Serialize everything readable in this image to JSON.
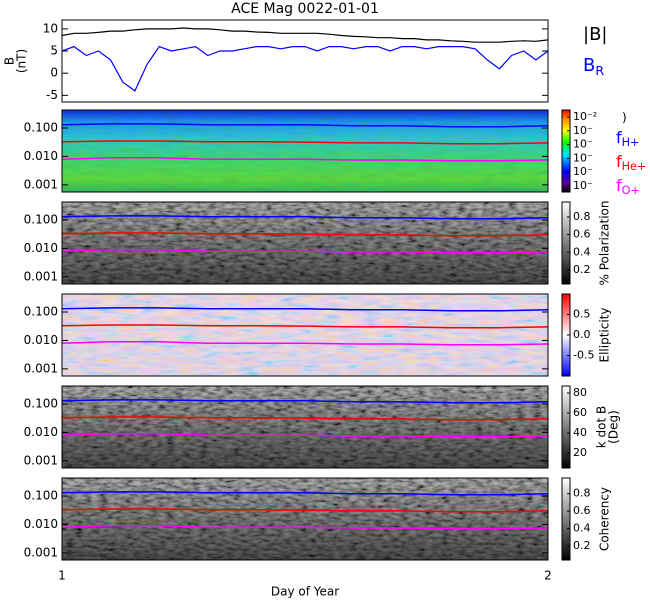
{
  "title": "ACE Mag 0022-01-01",
  "gyrofrequencies": {
    "x": [
      1.0,
      1.1,
      1.2,
      1.3,
      1.4,
      1.5,
      1.6,
      1.7,
      1.8,
      1.9,
      2.0
    ],
    "series": [
      {
        "name": "f",
        "subscript": "H+",
        "color": "#0000ff",
        "values": [
          0.13,
          0.14,
          0.14,
          0.13,
          0.13,
          0.13,
          0.12,
          0.12,
          0.11,
          0.11,
          0.12
        ]
      },
      {
        "name": "f",
        "subscript": "He+",
        "color": "#ff0000",
        "values": [
          0.033,
          0.035,
          0.035,
          0.033,
          0.033,
          0.032,
          0.03,
          0.03,
          0.028,
          0.028,
          0.03
        ]
      },
      {
        "name": "f",
        "subscript": "O+",
        "color": "#ff00ff",
        "values": [
          0.008,
          0.009,
          0.009,
          0.008,
          0.008,
          0.008,
          0.0075,
          0.0075,
          0.007,
          0.007,
          0.0075
        ]
      }
    ]
  },
  "chart_data": [
    {
      "type": "line",
      "ylabel": [
        "B",
        "(nT)"
      ],
      "xlim": [
        1,
        2
      ],
      "ylim": [
        -6.5,
        12
      ],
      "yticks": [
        -5,
        0,
        5,
        10
      ],
      "x": [
        1.0,
        1.025,
        1.05,
        1.075,
        1.1,
        1.125,
        1.15,
        1.175,
        1.2,
        1.225,
        1.25,
        1.275,
        1.3,
        1.325,
        1.35,
        1.375,
        1.4,
        1.425,
        1.45,
        1.475,
        1.5,
        1.525,
        1.55,
        1.575,
        1.6,
        1.625,
        1.65,
        1.675,
        1.7,
        1.725,
        1.75,
        1.775,
        1.8,
        1.825,
        1.85,
        1.875,
        1.9,
        1.925,
        1.95,
        1.975,
        2.0
      ],
      "series": [
        {
          "name": "|B|",
          "subscript": "",
          "color": "#000000",
          "values": [
            8.5,
            9,
            9,
            9.2,
            9.5,
            9.5,
            9.8,
            10,
            10,
            10,
            10.2,
            10,
            10,
            9.8,
            9.5,
            9.5,
            9.3,
            9.2,
            9,
            9,
            9,
            9,
            8.8,
            8.5,
            8.3,
            8.2,
            8,
            8,
            7.8,
            7.8,
            7.5,
            7.5,
            7.3,
            7.2,
            7,
            7,
            7,
            7.2,
            7.3,
            7.2,
            7.5
          ]
        },
        {
          "name": "B",
          "subscript": "R",
          "color": "#0000ff",
          "values": [
            5,
            6,
            4,
            5,
            3,
            -2,
            -4,
            2,
            6,
            5,
            5.5,
            6,
            4,
            5,
            5,
            5.5,
            6,
            6,
            5.5,
            6,
            6,
            5,
            6,
            6,
            5.5,
            6,
            6,
            5,
            6,
            6,
            5.5,
            6,
            6,
            6,
            5.5,
            3,
            1,
            4,
            5,
            3,
            5
          ]
        }
      ]
    },
    {
      "type": "spectrogram",
      "colormap": "rainbow",
      "log_y": true,
      "xlim": [
        1,
        2
      ],
      "ylim": [
        0.00056,
        0.43
      ],
      "yticks": [
        0.001,
        {
          "value": 0.01,
          "label": "0.010"
        },
        {
          "value": 0.1,
          "label": "0.100"
        }
      ],
      "colorbar_log": true,
      "clim": [
        3.7e-08,
        0.032
      ],
      "colorbar_ticks": [
        {
          "value": 0.01,
          "label": "10⁻²"
        },
        {
          "value": 0.001,
          "label": "10⁻"
        },
        {
          "value": 0.0001,
          "label": "10⁻"
        },
        {
          "value": 1e-05,
          "label": "10⁻"
        },
        {
          "value": 1e-06,
          "label": "10⁻"
        },
        {
          "value": 1e-07,
          "label": "10⁻"
        }
      ],
      "colorbar_label": [
        ")"
      ]
    },
    {
      "type": "spectrogram",
      "colormap": "gray",
      "log_y": true,
      "xlim": [
        1,
        2
      ],
      "ylim": [
        0.00056,
        0.43
      ],
      "yticks": [
        0.001,
        {
          "value": 0.01,
          "label": "0.010"
        },
        {
          "value": 0.1,
          "label": "0.100"
        }
      ],
      "colorbar_log": false,
      "clim": [
        0.04,
        0.97
      ],
      "colorbar_ticks": [
        0.2,
        0.4,
        0.6,
        0.8
      ],
      "colorbar_label": [
        "% Polarization"
      ]
    },
    {
      "type": "spectrogram",
      "colormap": "bwr",
      "log_y": true,
      "xlim": [
        1,
        2
      ],
      "ylim": [
        0.00056,
        0.43
      ],
      "yticks": [
        0.001,
        {
          "value": 0.01,
          "label": "0.010"
        },
        {
          "value": 0.1,
          "label": "0.100"
        }
      ],
      "colorbar_log": false,
      "clim": [
        -1,
        1
      ],
      "colorbar_ticks": [
        -0.5,
        {
          "value": 0,
          "label": "0.0"
        },
        0.5
      ],
      "colorbar_label": [
        "Ellipticity"
      ]
    },
    {
      "type": "spectrogram",
      "colormap": "gray",
      "log_y": true,
      "xlim": [
        1,
        2
      ],
      "ylim": [
        0.00056,
        0.43
      ],
      "yticks": [
        0.001,
        {
          "value": 0.01,
          "label": "0.010"
        },
        {
          "value": 0.1,
          "label": "0.100"
        }
      ],
      "colorbar_log": false,
      "clim": [
        5,
        87
      ],
      "colorbar_ticks": [
        20,
        40,
        60,
        80
      ],
      "colorbar_label": [
        "k dot B",
        "(Deg)"
      ]
    },
    {
      "type": "spectrogram",
      "colormap": "gray",
      "log_y": true,
      "xlim": [
        1,
        2
      ],
      "ylim": [
        0.00056,
        0.43
      ],
      "yticks": [
        0.001,
        {
          "value": 0.01,
          "label": "0.010"
        },
        {
          "value": 0.1,
          "label": "0.100"
        }
      ],
      "colorbar_log": false,
      "clim": [
        0.04,
        0.98
      ],
      "colorbar_ticks": [
        0.2,
        0.4,
        0.6,
        0.8
      ],
      "colorbar_label": [
        "Coherency"
      ],
      "xticks": [
        1,
        2
      ],
      "xlabel": "Day of Year"
    }
  ]
}
